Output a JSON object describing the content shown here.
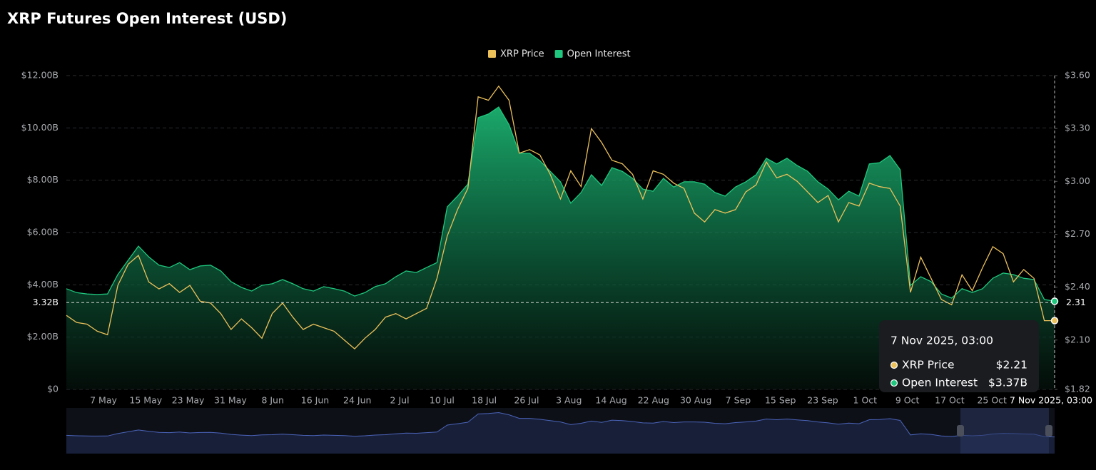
{
  "chart_data": {
    "type": "area-line",
    "title": "XRP Futures Open Interest (USD)",
    "legend": "top",
    "grid": true,
    "x": [
      "29 Apr",
      "1 May",
      "3 May",
      "5 May",
      "7 May",
      "9 May",
      "11 May",
      "13 May",
      "15 May",
      "17 May",
      "19 May",
      "21 May",
      "23 May",
      "25 May",
      "27 May",
      "29 May",
      "31 May",
      "2 Jun",
      "4 Jun",
      "6 Jun",
      "8 Jun",
      "10 Jun",
      "12 Jun",
      "14 Jun",
      "16 Jun",
      "18 Jun",
      "20 Jun",
      "22 Jun",
      "24 Jun",
      "26 Jun",
      "28 Jun",
      "30 Jun",
      "2 Jul",
      "4 Jul",
      "6 Jul",
      "8 Jul",
      "10 Jul",
      "12 Jul",
      "14 Jul",
      "16 Jul",
      "18 Jul",
      "20 Jul",
      "22 Jul",
      "24 Jul",
      "26 Jul",
      "28 Jul",
      "30 Jul",
      "1 Aug",
      "3 Aug",
      "5 Aug",
      "7 Aug",
      "9 Aug",
      "11 Aug",
      "13 Aug",
      "15 Aug",
      "17 Aug",
      "19 Aug",
      "21 Aug",
      "23 Aug",
      "25 Aug",
      "27 Aug",
      "29 Aug",
      "31 Aug",
      "2 Sep",
      "4 Sep",
      "6 Sep",
      "8 Sep",
      "10 Sep",
      "12 Sep",
      "14 Sep",
      "16 Sep",
      "18 Sep",
      "20 Sep",
      "22 Sep",
      "24 Sep",
      "26 Sep",
      "28 Sep",
      "30 Sep",
      "2 Oct",
      "4 Oct",
      "6 Oct",
      "8 Oct",
      "10 Oct",
      "12 Oct",
      "14 Oct",
      "16 Oct",
      "18 Oct",
      "20 Oct",
      "22 Oct",
      "24 Oct",
      "26 Oct",
      "28 Oct",
      "30 Oct",
      "1 Nov",
      "3 Nov",
      "5 Nov",
      "7 Nov"
    ],
    "xticks": [
      "7 May",
      "15 May",
      "23 May",
      "31 May",
      "8 Jun",
      "16 Jun",
      "24 Jun",
      "2 Jul",
      "10 Jul",
      "18 Jul",
      "26 Jul",
      "3 Aug",
      "14 Aug",
      "22 Aug",
      "30 Aug",
      "7 Sep",
      "15 Sep",
      "23 Sep",
      "1 Oct",
      "9 Oct",
      "17 Oct",
      "25 Oct"
    ],
    "series": [
      {
        "name": "XRP Price",
        "color": "#ecc15a",
        "axis": "y2",
        "values": [
          2.24,
          2.2,
          2.19,
          2.15,
          2.13,
          2.41,
          2.53,
          2.58,
          2.43,
          2.39,
          2.42,
          2.37,
          2.41,
          2.32,
          2.31,
          2.25,
          2.16,
          2.22,
          2.17,
          2.11,
          2.25,
          2.31,
          2.23,
          2.16,
          2.19,
          2.17,
          2.15,
          2.1,
          2.05,
          2.11,
          2.16,
          2.23,
          2.25,
          2.22,
          2.25,
          2.28,
          2.45,
          2.69,
          2.84,
          2.96,
          3.48,
          3.46,
          3.54,
          3.46,
          3.16,
          3.18,
          3.15,
          3.04,
          2.9,
          3.06,
          2.97,
          3.3,
          3.22,
          3.12,
          3.1,
          3.04,
          2.9,
          3.06,
          3.04,
          2.99,
          2.96,
          2.82,
          2.77,
          2.84,
          2.82,
          2.84,
          2.94,
          2.98,
          3.11,
          3.02,
          3.04,
          3.0,
          2.94,
          2.88,
          2.92,
          2.77,
          2.88,
          2.86,
          2.99,
          2.97,
          2.96,
          2.86,
          2.37,
          2.57,
          2.45,
          2.33,
          2.3,
          2.47,
          2.38,
          2.51,
          2.63,
          2.59,
          2.43,
          2.5,
          2.45,
          2.21,
          2.21
        ]
      },
      {
        "name": "Open Interest",
        "color": "#1fc77e",
        "axis": "y",
        "values": [
          3.85,
          3.7,
          3.65,
          3.63,
          3.65,
          4.39,
          4.94,
          5.48,
          5.07,
          4.75,
          4.66,
          4.85,
          4.58,
          4.72,
          4.75,
          4.53,
          4.12,
          3.9,
          3.76,
          3.98,
          4.04,
          4.2,
          4.04,
          3.85,
          3.76,
          3.93,
          3.85,
          3.76,
          3.57,
          3.7,
          3.93,
          4.04,
          4.31,
          4.53,
          4.47,
          4.66,
          4.85,
          6.98,
          7.39,
          7.85,
          10.39,
          10.53,
          10.8,
          10.12,
          9.03,
          9.03,
          8.75,
          8.34,
          7.94,
          7.12,
          7.53,
          8.21,
          7.8,
          8.48,
          8.34,
          8.07,
          7.66,
          7.58,
          8.07,
          7.74,
          7.94,
          7.94,
          7.85,
          7.53,
          7.39,
          7.74,
          7.94,
          8.21,
          8.84,
          8.62,
          8.84,
          8.56,
          8.34,
          7.94,
          7.66,
          7.25,
          7.58,
          7.39,
          8.62,
          8.67,
          8.94,
          8.4,
          3.98,
          4.31,
          4.12,
          3.65,
          3.49,
          3.85,
          3.71,
          3.85,
          4.25,
          4.45,
          4.39,
          4.25,
          4.2,
          3.44,
          3.37
        ]
      }
    ],
    "ylim": [
      0,
      12
    ],
    "yticks": [
      {
        "value": 0,
        "label": "$0"
      },
      {
        "value": 2,
        "label": "$2.00B"
      },
      {
        "value": 4,
        "label": "$4.00B"
      },
      {
        "value": 6,
        "label": "$6.00B"
      },
      {
        "value": 8,
        "label": "$8.00B"
      },
      {
        "value": 10,
        "label": "$10.00B"
      },
      {
        "value": 12,
        "label": "$12.00B"
      }
    ],
    "y2lim": [
      1.82,
      3.6
    ],
    "y2ticks": [
      {
        "value": 1.82,
        "label": "$1.82"
      },
      {
        "value": 2.1,
        "label": "$2.10"
      },
      {
        "value": 2.4,
        "label": "$2.40"
      },
      {
        "value": 2.7,
        "label": "$2.70"
      },
      {
        "value": 3,
        "label": "$3.00"
      },
      {
        "value": 3.3,
        "label": "$3.30"
      },
      {
        "value": 3.6,
        "label": "$3.60"
      }
    ],
    "crosshair": {
      "y": {
        "value": 3.32,
        "label": "3.32B"
      },
      "y2": 2.31
    },
    "tooltip": {
      "title": "7 Nov 2025, 03:00",
      "rows": [
        {
          "name": "XRP Price",
          "value": 2.21,
          "label": "$2.21"
        },
        {
          "name": "Open Interest",
          "value": 3.37,
          "label": "$3.37B"
        }
      ]
    }
  }
}
